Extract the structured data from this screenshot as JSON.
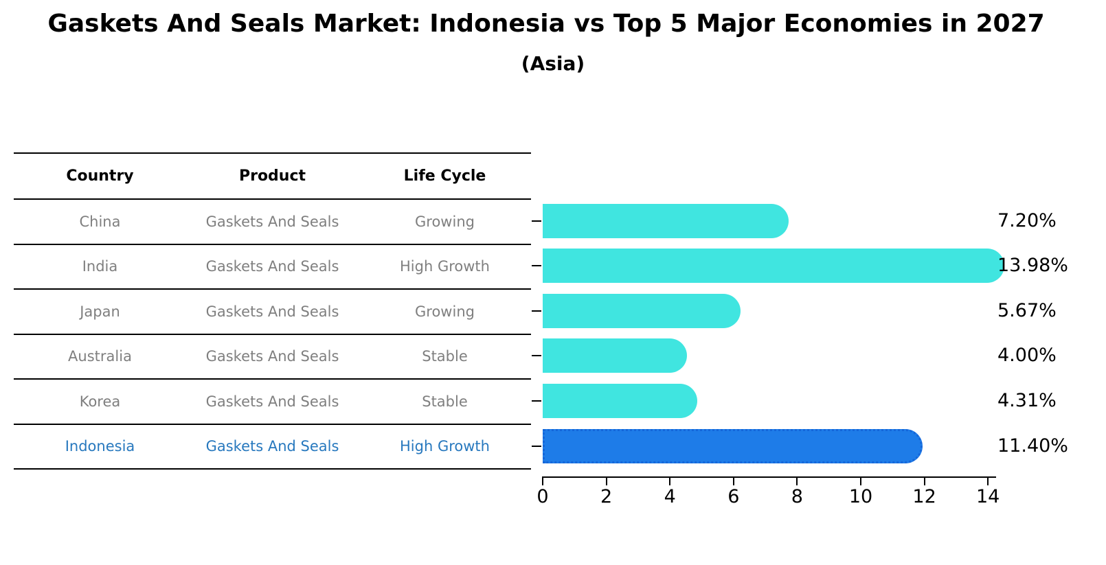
{
  "title": "Gaskets And Seals Market: Indonesia vs Top 5 Major Economies in 2027",
  "subtitle": "(Asia)",
  "table": {
    "headers": [
      "Country",
      "Product",
      "Life Cycle"
    ],
    "rows": [
      {
        "country": "China",
        "product": "Gaskets And Seals",
        "life_cycle": "Growing"
      },
      {
        "country": "India",
        "product": "Gaskets And Seals",
        "life_cycle": "High Growth"
      },
      {
        "country": "Japan",
        "product": "Gaskets And Seals",
        "life_cycle": "Growing"
      },
      {
        "country": "Australia",
        "product": "Gaskets And Seals",
        "life_cycle": "Stable"
      },
      {
        "country": "Korea",
        "product": "Gaskets And Seals",
        "life_cycle": "Stable"
      },
      {
        "country": "Indonesia",
        "product": "Gaskets And Seals",
        "life_cycle": "High Growth"
      }
    ]
  },
  "chart_data": {
    "type": "bar",
    "orientation": "horizontal",
    "title": "Gaskets And Seals Market: Indonesia vs Top 5 Major Economies in 2027 (Asia)",
    "categories": [
      "China",
      "India",
      "Japan",
      "Australia",
      "Korea",
      "Indonesia"
    ],
    "values": [
      7.2,
      13.98,
      5.67,
      4.0,
      4.31,
      11.4
    ],
    "value_labels": [
      "7.20%",
      "13.98%",
      "5.67%",
      "4.00%",
      "4.31%",
      "11.40%"
    ],
    "unit": "%",
    "x_ticks": [
      0,
      2,
      4,
      6,
      8,
      10,
      12,
      14
    ],
    "xlim": [
      0,
      14.2
    ],
    "xlabel": "",
    "ylabel": "",
    "grid": false,
    "legend": "none",
    "highlight_index": 5,
    "highlight_category": "Indonesia"
  },
  "colors": {
    "background": "#ffffff",
    "bar_fill": "#40e5e0",
    "highlight_fill": "#1e7ce8",
    "highlight_edge": "#1566d9",
    "highlight_text": "#2778be",
    "table_text": "#7f7f7f",
    "header_text": "#000000",
    "label_text": "#000000",
    "axis": "#000000"
  }
}
